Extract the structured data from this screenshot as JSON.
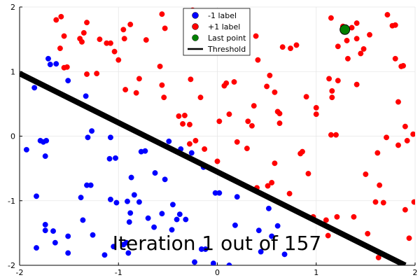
{
  "chart_data": {
    "type": "scatter",
    "title": "",
    "xlabel": "",
    "ylabel": "",
    "xlim": [
      -2,
      2
    ],
    "ylim": [
      -2,
      2
    ],
    "xticks": [
      -2,
      -1,
      0,
      1,
      2
    ],
    "yticks": [
      -2,
      -1,
      0,
      1,
      2
    ],
    "grid": true,
    "legend_position": "top-center",
    "annotation": "Iteration 1 out of 157",
    "series": [
      {
        "name": "-1 label",
        "color": "#0000ff",
        "points": [
          [
            -1.93,
            -0.21
          ],
          [
            -1.85,
            0.75
          ],
          [
            -1.83,
            -0.93
          ],
          [
            -1.83,
            -1.73
          ],
          [
            -1.79,
            -0.07
          ],
          [
            -1.76,
            -0.09
          ],
          [
            -1.74,
            -0.31
          ],
          [
            -1.74,
            -1.37
          ],
          [
            -1.74,
            -1.46
          ],
          [
            -1.73,
            -0.07
          ],
          [
            -1.71,
            1.2
          ],
          [
            -1.69,
            1.11
          ],
          [
            -1.66,
            -1.47
          ],
          [
            -1.64,
            -1.65
          ],
          [
            -1.63,
            1.12
          ],
          [
            -1.51,
            0.86
          ],
          [
            -1.51,
            -1.55
          ],
          [
            -1.51,
            -1.81
          ],
          [
            -1.38,
            -0.95
          ],
          [
            -1.36,
            -1.3
          ],
          [
            -1.33,
            0.62
          ],
          [
            -1.32,
            -0.76
          ],
          [
            -1.31,
            -0.02
          ],
          [
            -1.28,
            -0.76
          ],
          [
            -1.27,
            0.08
          ],
          [
            -1.26,
            -1.53
          ],
          [
            -1.14,
            -1.84
          ],
          [
            -1.09,
            -0.35
          ],
          [
            -1.08,
            -0.98
          ],
          [
            -1.08,
            -0.02
          ],
          [
            -1.05,
            -1.71
          ],
          [
            -1.03,
            -0.34
          ],
          [
            -1.02,
            -1.03
          ],
          [
            -0.95,
            -1.68
          ],
          [
            -0.92,
            -1.65
          ],
          [
            -0.91,
            -1.01
          ],
          [
            -0.9,
            -1.81
          ],
          [
            -0.89,
            -1.33
          ],
          [
            -0.88,
            -1.19
          ],
          [
            -0.87,
            -0.64
          ],
          [
            -0.84,
            -0.91
          ],
          [
            -0.79,
            -1.02
          ],
          [
            -0.77,
            -0.24
          ],
          [
            -0.73,
            -0.23
          ],
          [
            -0.7,
            -1.27
          ],
          [
            -0.64,
            -1.41
          ],
          [
            -0.63,
            -0.57
          ],
          [
            -0.56,
            -1.2
          ],
          [
            -0.53,
            -0.67
          ],
          [
            -0.49,
            -0.08
          ],
          [
            -0.46,
            -1.45
          ],
          [
            -0.45,
            -1.06
          ],
          [
            -0.41,
            -1.29
          ],
          [
            -0.38,
            -1.21
          ],
          [
            -0.37,
            -0.2
          ],
          [
            -0.32,
            -1.29
          ],
          [
            -0.26,
            -0.26
          ],
          [
            -0.23,
            -1.95
          ],
          [
            -0.16,
            -1.75
          ],
          [
            -0.14,
            -0.48
          ],
          [
            -0.12,
            -1.75
          ],
          [
            -0.04,
            -1.97
          ],
          [
            -0.02,
            -0.88
          ],
          [
            0.02,
            -0.88
          ],
          [
            0.12,
            -2.0
          ],
          [
            0.18,
            -1.38
          ],
          [
            0.2,
            -0.94
          ],
          [
            0.42,
            -1.46
          ],
          [
            0.44,
            -1.79
          ],
          [
            0.52,
            -1.12
          ],
          [
            0.55,
            -1.55
          ],
          [
            0.61,
            -1.39
          ],
          [
            0.68,
            -1.83
          ]
        ]
      },
      {
        "name": "+1 label",
        "color": "#ff0000",
        "points": [
          [
            -1.63,
            1.8
          ],
          [
            -1.59,
            1.36
          ],
          [
            -1.58,
            1.85
          ],
          [
            -1.55,
            1.55
          ],
          [
            -1.55,
            1.06
          ],
          [
            -1.52,
            1.07
          ],
          [
            -1.39,
            1.51
          ],
          [
            -1.37,
            1.46
          ],
          [
            -1.35,
            1.6
          ],
          [
            -1.32,
            1.76
          ],
          [
            -1.32,
            0.96
          ],
          [
            -1.22,
            0.97
          ],
          [
            -1.19,
            1.5
          ],
          [
            -1.12,
            1.44
          ],
          [
            -1.08,
            1.44
          ],
          [
            -1.04,
            1.31
          ],
          [
            -1.0,
            1.18
          ],
          [
            -0.95,
            1.65
          ],
          [
            -0.94,
            1.51
          ],
          [
            -0.93,
            0.72
          ],
          [
            -0.88,
            1.73
          ],
          [
            -0.82,
            0.67
          ],
          [
            -0.79,
            0.89
          ],
          [
            -0.72,
            1.49
          ],
          [
            -0.58,
            1.08
          ],
          [
            -0.56,
            1.89
          ],
          [
            -0.56,
            0.79
          ],
          [
            -0.54,
            0.6
          ],
          [
            -0.53,
            1.67
          ],
          [
            -0.39,
            0.31
          ],
          [
            -0.35,
            0.19
          ],
          [
            -0.33,
            0.32
          ],
          [
            -0.28,
            -0.12
          ],
          [
            -0.28,
            0.18
          ],
          [
            -0.27,
            0.88
          ],
          [
            -0.25,
            1.95
          ],
          [
            -0.22,
            -0.07
          ],
          [
            -0.17,
            0.6
          ],
          [
            -0.13,
            -0.2
          ],
          [
            0.0,
            -0.39
          ],
          [
            0.02,
            0.23
          ],
          [
            0.07,
            0.78
          ],
          [
            0.09,
            0.82
          ],
          [
            0.12,
            0.34
          ],
          [
            0.17,
            0.84
          ],
          [
            0.2,
            -0.09
          ],
          [
            0.3,
            -0.19
          ],
          [
            0.31,
            0.23
          ],
          [
            0.35,
            0.16
          ],
          [
            0.37,
            0.47
          ],
          [
            0.39,
            1.55
          ],
          [
            0.4,
            -0.8
          ],
          [
            0.41,
            1.18
          ],
          [
            0.51,
            -0.77
          ],
          [
            0.5,
            0.77
          ],
          [
            0.53,
            0.94
          ],
          [
            0.55,
            -0.72
          ],
          [
            0.58,
            -0.42
          ],
          [
            0.58,
            0.68
          ],
          [
            0.61,
            0.38
          ],
          [
            0.63,
            0.35
          ],
          [
            0.63,
            0.2
          ],
          [
            0.66,
            1.38
          ],
          [
            0.73,
            -0.89
          ],
          [
            0.74,
            1.36
          ],
          [
            0.8,
            1.41
          ],
          [
            0.84,
            -0.27
          ],
          [
            0.86,
            -0.24
          ],
          [
            0.9,
            0.61
          ],
          [
            0.92,
            -0.58
          ],
          [
            0.97,
            -1.25
          ],
          [
            1.0,
            0.44
          ],
          [
            1.0,
            0.34
          ],
          [
            1.1,
            -1.3
          ],
          [
            1.12,
            -1.54
          ],
          [
            1.13,
            0.89
          ],
          [
            1.15,
            0.02
          ],
          [
            1.15,
            1.83
          ],
          [
            1.16,
            0.7
          ],
          [
            1.16,
            0.6
          ],
          [
            1.2,
            0.02
          ],
          [
            1.21,
            -1.25
          ],
          [
            1.22,
            1.39
          ],
          [
            1.22,
            0.86
          ],
          [
            1.27,
            1.7
          ],
          [
            1.31,
            1.48
          ],
          [
            1.32,
            1.2
          ],
          [
            1.36,
            1.68
          ],
          [
            1.38,
            -1.25
          ],
          [
            1.41,
            0.8
          ],
          [
            1.41,
            1.51
          ],
          [
            1.41,
            1.75
          ],
          [
            1.45,
            1.28
          ],
          [
            1.48,
            1.35
          ],
          [
            1.5,
            -0.59
          ],
          [
            1.52,
            -1.51
          ],
          [
            1.54,
            1.57
          ],
          [
            1.6,
            -1.02
          ],
          [
            1.62,
            -0.26
          ],
          [
            1.63,
            -1.88
          ],
          [
            1.64,
            -0.76
          ],
          [
            1.68,
            -1.03
          ],
          [
            1.71,
            -0.02
          ],
          [
            1.72,
            1.88
          ],
          [
            1.77,
            1.71
          ],
          [
            1.8,
            1.72
          ],
          [
            1.8,
            1.2
          ],
          [
            1.83,
            0.53
          ],
          [
            1.83,
            -0.14
          ],
          [
            1.86,
            1.08
          ],
          [
            1.88,
            1.09
          ],
          [
            1.9,
            0.15
          ],
          [
            1.9,
            -1.14
          ],
          [
            1.92,
            -0.07
          ],
          [
            1.94,
            -1.58
          ],
          [
            1.98,
            0.03
          ],
          [
            1.99,
            -1.02
          ]
        ]
      },
      {
        "name": "Last point",
        "color": "#008000",
        "points": [
          [
            1.29,
            1.65
          ]
        ]
      }
    ],
    "lines": [
      {
        "name": "Threshold",
        "color": "#000000",
        "x": [
          -2.0,
          1.9
        ],
        "y": [
          0.97,
          -2.0
        ]
      }
    ]
  }
}
